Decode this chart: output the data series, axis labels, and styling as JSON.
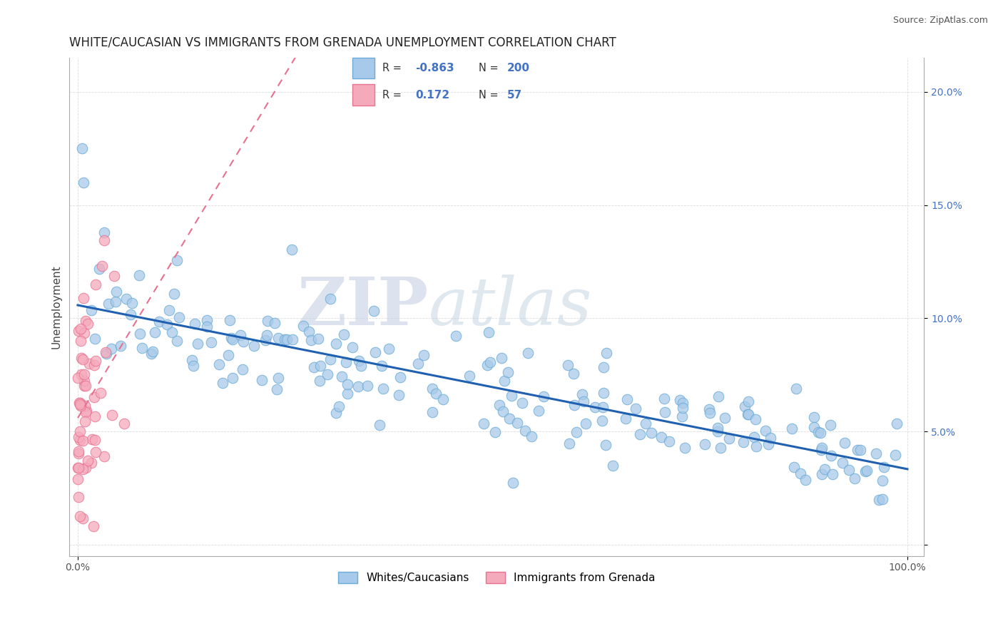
{
  "title": "WHITE/CAUCASIAN VS IMMIGRANTS FROM GRENADA UNEMPLOYMENT CORRELATION CHART",
  "source": "Source: ZipAtlas.com",
  "ylabel": "Unemployment",
  "blue_R": -0.863,
  "blue_N": 200,
  "pink_R": 0.172,
  "pink_N": 57,
  "blue_scatter_color": "#A8CAEA",
  "pink_scatter_color": "#F5AABB",
  "blue_edge_color": "#6AAAD4",
  "pink_edge_color": "#E87090",
  "blue_line_color": "#2060B0",
  "pink_line_color": "#E87090",
  "watermark_color": "#C8D8F0",
  "label_color": "#4472C4",
  "legend_labels": [
    "Whites/Caucasians",
    "Immigrants from Grenada"
  ],
  "x_ticks": [
    0.0,
    1.0
  ],
  "x_tick_labels": [
    "0.0%",
    "100.0%"
  ],
  "y_ticks": [
    0.0,
    0.05,
    0.1,
    0.15,
    0.2
  ],
  "y_tick_labels": [
    "",
    "5.0%",
    "10.0%",
    "15.0%",
    "20.0%"
  ],
  "xlim": [
    -0.01,
    1.02
  ],
  "ylim": [
    -0.005,
    0.215
  ],
  "blue_seed": 42,
  "pink_seed": 99,
  "title_fontsize": 12,
  "tick_fontsize": 10,
  "grid_color": "#DDDDDD",
  "grid_style": "--"
}
